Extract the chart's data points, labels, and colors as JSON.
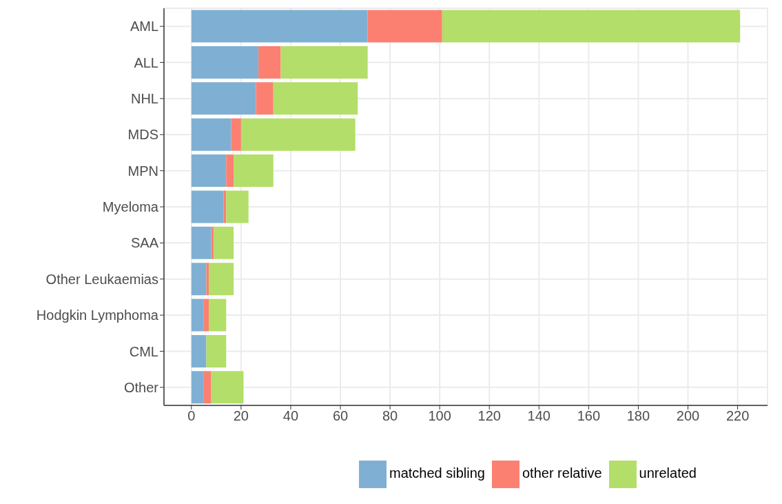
{
  "chart_data": {
    "type": "bar",
    "orientation": "horizontal",
    "stacked": true,
    "categories": [
      "AML",
      "ALL",
      "NHL",
      "MDS",
      "MPN",
      "Myeloma",
      "SAA",
      "Other Leukaemias",
      "Hodgkin Lymphoma",
      "CML",
      "Other"
    ],
    "series": [
      {
        "name": "matched sibling",
        "color": "#7fb0d3",
        "values": [
          71,
          27,
          26,
          16,
          14,
          13,
          8,
          6,
          5,
          6,
          5
        ]
      },
      {
        "name": "other relative",
        "color": "#fb8072",
        "values": [
          30,
          9,
          7,
          4,
          3,
          1,
          1,
          1,
          2,
          0,
          3
        ]
      },
      {
        "name": "unrelated",
        "color": "#b3de69",
        "values": [
          120,
          35,
          34,
          46,
          16,
          9,
          8,
          10,
          7,
          8,
          13
        ]
      }
    ],
    "xlim": [
      -11.05,
      232.05
    ],
    "xticks": [
      0,
      20,
      40,
      60,
      80,
      100,
      120,
      140,
      160,
      180,
      200,
      220
    ],
    "grid": true,
    "legend": "bottom"
  }
}
